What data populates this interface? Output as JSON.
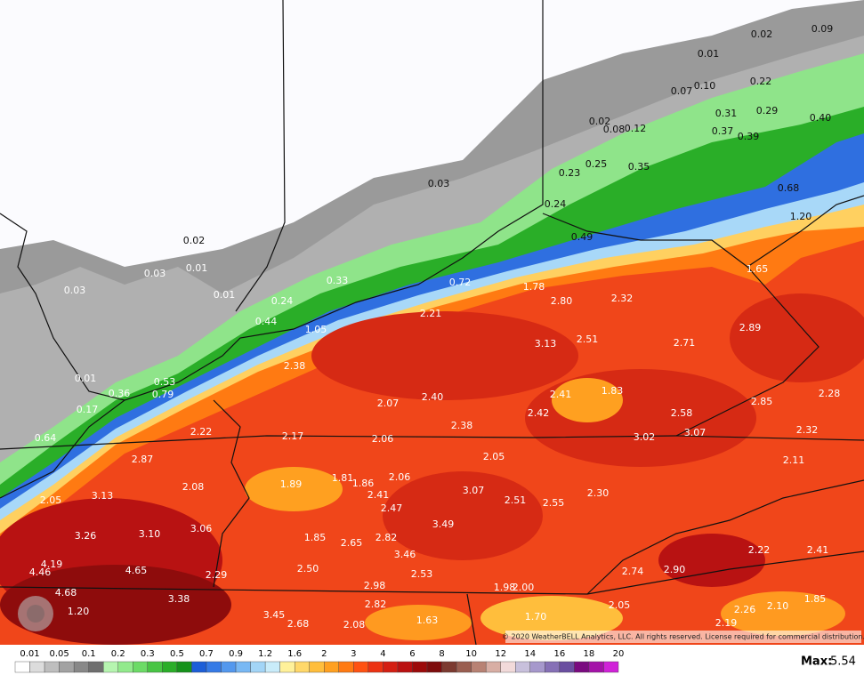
{
  "map": {
    "labels": [
      "0.02",
      "0.09",
      "0.01",
      "0.22",
      "0.07",
      "0.10",
      "0.31",
      "0.29",
      "0.40",
      "0.02",
      "0.08",
      "0.12",
      "0.37",
      "0.39",
      "0.35",
      "0.25",
      "0.23",
      "0.03",
      "0.68",
      "0.24",
      "1.20",
      "0.49",
      "0.02",
      "0.03",
      "0.01",
      "0.03",
      "1.65",
      "0.33",
      "0.72",
      "1.78",
      "0.01",
      "0.24",
      "2.80",
      "2.32",
      "2.21",
      "0.44",
      "1.05",
      "3.13",
      "2.51",
      "2.71",
      "2.89",
      "2.38",
      "0.01",
      "0.53",
      "0.36",
      "0.79",
      "2.28",
      "1.83",
      "2.41",
      "2.40",
      "2.07",
      "2.85",
      "0.17",
      "2.58",
      "2.42",
      "2.38",
      "2.22",
      "2.17",
      "2.06",
      "3.02",
      "3.07",
      "2.32",
      "0.64",
      "2.87",
      "2.05",
      "2.11",
      "1.89",
      "1.81",
      "1.86",
      "2.06",
      "2.08",
      "3.07",
      "2.30",
      "2.41",
      "2.51",
      "2.55",
      "2.05",
      "3.13",
      "2.47",
      "3.49",
      "3.26",
      "3.10",
      "3.06",
      "1.85",
      "2.65",
      "2.82",
      "3.46",
      "2.22",
      "2.41",
      "4.19",
      "4.46",
      "4.65",
      "2.29",
      "2.50",
      "2.53",
      "2.74",
      "2.90",
      "2.98",
      "1.98",
      "2.00",
      "1.85",
      "4.68",
      "3.38",
      "2.82",
      "2.10",
      "2.26",
      "2.05",
      "1.70",
      "1.63",
      "3.45",
      "2.68",
      "2.08",
      "2.19",
      "1.20"
    ]
  },
  "copyright": "© 2020 WeatherBELL Analytics, LLC. All rights reserved. License required for commercial distribution.",
  "colorbar": {
    "labels": [
      "0.01",
      "0.05",
      "0.1",
      "0.2",
      "0.3",
      "0.5",
      "0.7",
      "0.9",
      "1.2",
      "1.6",
      "2",
      "3",
      "4",
      "6",
      "8",
      "10",
      "12",
      "14",
      "16",
      "18",
      "20"
    ],
    "colors": [
      "#ffffff",
      "#dcdcdc",
      "#bebebe",
      "#a2a2a2",
      "#888888",
      "#6e6e6e",
      "#b6f5b0",
      "#92ea8c",
      "#6cdb66",
      "#48c544",
      "#2aae28",
      "#15921a",
      "#1c5ed8",
      "#357ae6",
      "#5398ee",
      "#78b8f4",
      "#a3d5f7",
      "#c9ecfa",
      "#fff19a",
      "#ffd86a",
      "#ffbe3c",
      "#ffa020",
      "#ff7a12",
      "#ff5212",
      "#ec3212",
      "#d41e12",
      "#ba1010",
      "#9c0a0a",
      "#7e0c0c",
      "#7c3a30",
      "#9a5e50",
      "#b88274",
      "#d8aea4",
      "#f2dada",
      "#c8c0dc",
      "#a698cc",
      "#8670b6",
      "#6a4ea0",
      "#7a0a80",
      "#a412a8",
      "#d022d8"
    ]
  },
  "max": {
    "label": "Max:",
    "value": "5.54"
  }
}
